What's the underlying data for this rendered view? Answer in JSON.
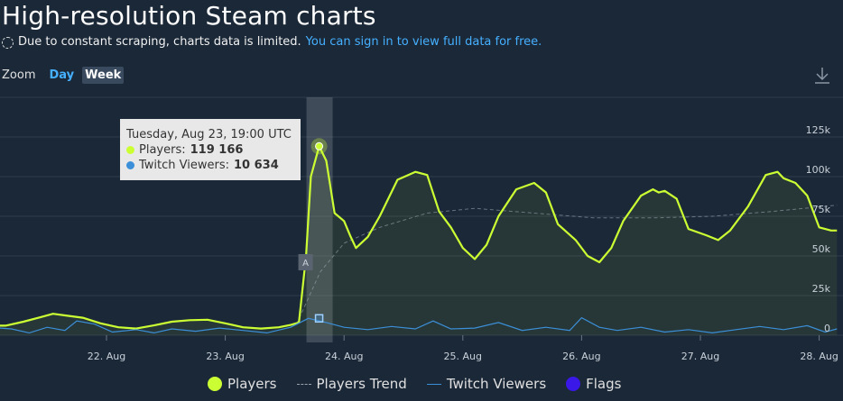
{
  "header": {
    "title": "High-resolution Steam charts",
    "notice": "Due to constant scraping, charts data is limited.",
    "link": "You can sign in to view full data for free."
  },
  "zoom": {
    "label": "Zoom",
    "options": [
      "Day",
      "Week"
    ],
    "active": "Week"
  },
  "tooltip": {
    "date": "Tuesday, Aug 23, 19:00 UTC",
    "players_label": "Players:",
    "players_value": "119 166",
    "twitch_label": "Twitch Viewers:",
    "twitch_value": "10 634"
  },
  "legend": {
    "players": "Players",
    "trend": "Players Trend",
    "twitch": "Twitch Viewers",
    "flags": "Flags"
  },
  "colors": {
    "players": "#ccff33",
    "trend": "#9aa3ad",
    "twitch": "#3b8fd8",
    "flags": "#3a18e8",
    "background": "#1b2838",
    "accent": "#45b0ff"
  },
  "chart_data": {
    "type": "line",
    "x_start_day": 21.0,
    "x_end_day": 28.2,
    "x_ticks": [
      {
        "day": 22,
        "label": "22. Aug"
      },
      {
        "day": 23,
        "label": "23. Aug"
      },
      {
        "day": 24,
        "label": "24. Aug"
      },
      {
        "day": 25,
        "label": "25. Aug"
      },
      {
        "day": 26,
        "label": "26. Aug"
      },
      {
        "day": 27,
        "label": "27. Aug"
      },
      {
        "day": 28,
        "label": "28. Aug"
      }
    ],
    "y_ticks": [
      {
        "value": 0,
        "label": "0"
      },
      {
        "value": 25000,
        "label": "25k"
      },
      {
        "value": 50000,
        "label": "50k"
      },
      {
        "value": 75000,
        "label": "75k"
      },
      {
        "value": 100000,
        "label": "100k"
      },
      {
        "value": 125000,
        "label": "125k"
      }
    ],
    "ylim": [
      0,
      150000
    ],
    "grid": true,
    "legend_position": "bottom",
    "highlight_day": 23.79,
    "flag": {
      "day": 23.79,
      "label": "A"
    },
    "series": [
      {
        "name": "Players",
        "points": [
          [
            21.0,
            6000
          ],
          [
            21.15,
            6000
          ],
          [
            21.3,
            8500
          ],
          [
            21.45,
            11500
          ],
          [
            21.55,
            13500
          ],
          [
            21.65,
            12500
          ],
          [
            21.8,
            11000
          ],
          [
            21.95,
            7500
          ],
          [
            22.1,
            5000
          ],
          [
            22.25,
            4200
          ],
          [
            22.4,
            6200
          ],
          [
            22.55,
            8500
          ],
          [
            22.7,
            9500
          ],
          [
            22.85,
            9800
          ],
          [
            23.0,
            7500
          ],
          [
            23.15,
            5000
          ],
          [
            23.3,
            4200
          ],
          [
            23.45,
            5000
          ],
          [
            23.55,
            6500
          ],
          [
            23.62,
            8000
          ],
          [
            23.68,
            50000
          ],
          [
            23.72,
            100000
          ],
          [
            23.79,
            119166
          ],
          [
            23.85,
            110000
          ],
          [
            23.92,
            77000
          ],
          [
            24.0,
            72000
          ],
          [
            24.05,
            63000
          ],
          [
            24.1,
            55000
          ],
          [
            24.2,
            62000
          ],
          [
            24.3,
            75000
          ],
          [
            24.45,
            98000
          ],
          [
            24.6,
            103000
          ],
          [
            24.7,
            101000
          ],
          [
            24.8,
            78000
          ],
          [
            24.9,
            68000
          ],
          [
            25.0,
            55000
          ],
          [
            25.1,
            48000
          ],
          [
            25.2,
            57000
          ],
          [
            25.3,
            75000
          ],
          [
            25.45,
            92000
          ],
          [
            25.6,
            96000
          ],
          [
            25.7,
            90000
          ],
          [
            25.8,
            70000
          ],
          [
            25.95,
            60000
          ],
          [
            26.05,
            50000
          ],
          [
            26.15,
            46000
          ],
          [
            26.25,
            55000
          ],
          [
            26.35,
            72000
          ],
          [
            26.5,
            88000
          ],
          [
            26.6,
            92000
          ],
          [
            26.65,
            90000
          ],
          [
            26.7,
            91000
          ],
          [
            26.8,
            86000
          ],
          [
            26.9,
            67000
          ],
          [
            27.05,
            63000
          ],
          [
            27.15,
            60000
          ],
          [
            27.25,
            66000
          ],
          [
            27.4,
            81000
          ],
          [
            27.55,
            101000
          ],
          [
            27.65,
            103000
          ],
          [
            27.7,
            99000
          ],
          [
            27.8,
            96000
          ],
          [
            27.9,
            88000
          ],
          [
            28.0,
            68000
          ],
          [
            28.1,
            66000
          ],
          [
            28.15,
            66000
          ]
        ]
      },
      {
        "name": "Players Trend",
        "points": [
          [
            23.6,
            7000
          ],
          [
            23.8,
            40000
          ],
          [
            24.0,
            58000
          ],
          [
            24.3,
            68000
          ],
          [
            24.7,
            77000
          ],
          [
            25.1,
            80000
          ],
          [
            25.6,
            77000
          ],
          [
            26.1,
            74000
          ],
          [
            26.6,
            74000
          ],
          [
            27.1,
            75000
          ],
          [
            27.6,
            78000
          ],
          [
            28.15,
            82000
          ]
        ]
      },
      {
        "name": "Twitch Viewers",
        "points": [
          [
            21.0,
            5000
          ],
          [
            21.2,
            4000
          ],
          [
            21.35,
            1500
          ],
          [
            21.5,
            5000
          ],
          [
            21.65,
            3000
          ],
          [
            21.75,
            9000
          ],
          [
            21.9,
            7000
          ],
          [
            22.05,
            2000
          ],
          [
            22.25,
            3500
          ],
          [
            22.4,
            1500
          ],
          [
            22.55,
            4000
          ],
          [
            22.75,
            2500
          ],
          [
            22.95,
            4500
          ],
          [
            23.15,
            3000
          ],
          [
            23.35,
            1500
          ],
          [
            23.55,
            5000
          ],
          [
            23.7,
            10634
          ],
          [
            23.85,
            8000
          ],
          [
            24.0,
            5000
          ],
          [
            24.2,
            3500
          ],
          [
            24.4,
            5500
          ],
          [
            24.6,
            4000
          ],
          [
            24.75,
            9000
          ],
          [
            24.9,
            4000
          ],
          [
            25.1,
            4500
          ],
          [
            25.3,
            8000
          ],
          [
            25.5,
            3000
          ],
          [
            25.7,
            5000
          ],
          [
            25.9,
            3000
          ],
          [
            26.0,
            11000
          ],
          [
            26.15,
            5000
          ],
          [
            26.3,
            3000
          ],
          [
            26.5,
            5000
          ],
          [
            26.7,
            2000
          ],
          [
            26.9,
            3500
          ],
          [
            27.1,
            1500
          ],
          [
            27.3,
            3500
          ],
          [
            27.5,
            5500
          ],
          [
            27.7,
            3500
          ],
          [
            27.9,
            6000
          ],
          [
            28.05,
            2000
          ],
          [
            28.15,
            4000
          ]
        ]
      }
    ]
  }
}
